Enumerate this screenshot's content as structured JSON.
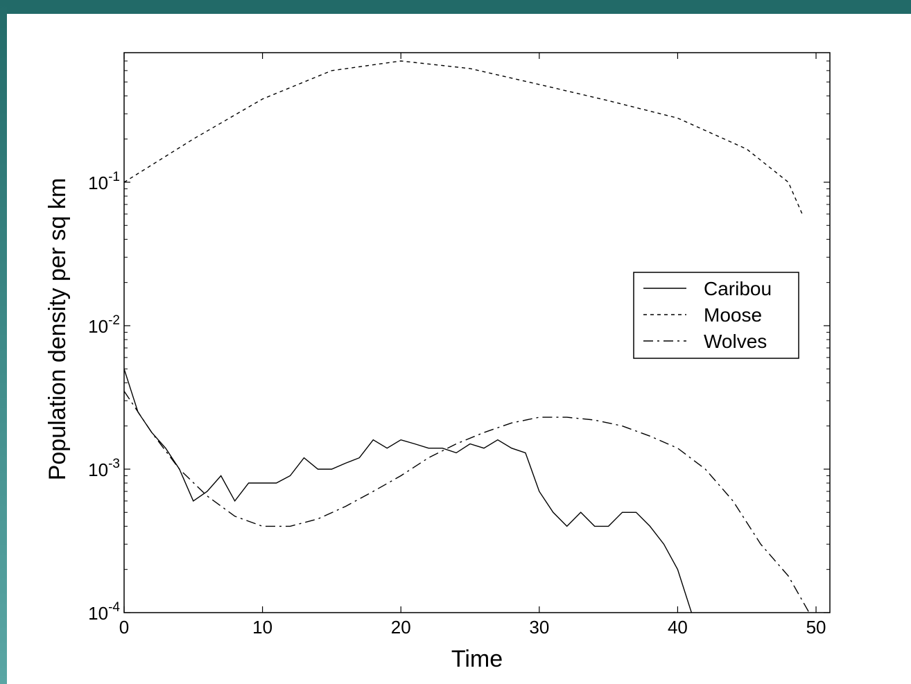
{
  "chart_data": {
    "type": "line",
    "title": "",
    "xlabel": "Time",
    "ylabel": "Population density per sq km",
    "xlim": [
      0,
      51
    ],
    "ylim": [
      0.0001,
      0.8
    ],
    "yscale": "log",
    "grid": false,
    "legend_position": "center-right",
    "x_ticks": [
      0,
      10,
      20,
      30,
      40,
      50
    ],
    "x_tick_labels": [
      "0",
      "10",
      "20",
      "30",
      "40",
      "50"
    ],
    "y_ticks": [
      0.1,
      0.01,
      0.001,
      0.0001
    ],
    "y_tick_labels": [
      {
        "base": "10",
        "exp": "-1"
      },
      {
        "base": "10",
        "exp": "-2"
      },
      {
        "base": "10",
        "exp": "-3"
      },
      {
        "base": "10",
        "exp": "-4"
      }
    ],
    "series": [
      {
        "name": "Caribou",
        "style": "solid",
        "x": [
          0,
          1,
          2,
          3,
          4,
          5,
          6,
          7,
          8,
          9,
          10,
          11,
          12,
          13,
          14,
          15,
          16,
          17,
          18,
          19,
          20,
          21,
          22,
          23,
          24,
          25,
          26,
          27,
          28,
          29,
          30,
          31,
          32,
          33,
          34,
          35,
          36,
          37,
          38,
          39,
          40,
          41
        ],
        "y": [
          0.005,
          0.0025,
          0.0018,
          0.0014,
          0.001,
          0.0006,
          0.0007,
          0.0009,
          0.0006,
          0.0008,
          0.0008,
          0.0008,
          0.0009,
          0.0012,
          0.001,
          0.001,
          0.0011,
          0.0012,
          0.0016,
          0.0014,
          0.0016,
          0.0015,
          0.0014,
          0.0014,
          0.0013,
          0.0015,
          0.0014,
          0.0016,
          0.0014,
          0.0013,
          0.0007,
          0.0005,
          0.0004,
          0.0005,
          0.0004,
          0.0004,
          0.0005,
          0.0005,
          0.0004,
          0.0003,
          0.0002,
          0.0001
        ]
      },
      {
        "name": "Moose",
        "style": "dotted",
        "x": [
          0,
          5,
          10,
          15,
          20,
          25,
          30,
          35,
          40,
          45,
          48,
          49
        ],
        "y": [
          0.1,
          0.2,
          0.38,
          0.6,
          0.7,
          0.62,
          0.48,
          0.37,
          0.28,
          0.17,
          0.1,
          0.06
        ]
      },
      {
        "name": "Wolves",
        "style": "dashdot",
        "x": [
          0,
          2,
          4,
          6,
          8,
          10,
          12,
          14,
          16,
          18,
          20,
          22,
          24,
          26,
          28,
          30,
          32,
          34,
          36,
          38,
          40,
          42,
          44,
          46,
          48,
          49.5
        ],
        "y": [
          0.0035,
          0.0018,
          0.001,
          0.00065,
          0.00047,
          0.0004,
          0.0004,
          0.00045,
          0.00055,
          0.0007,
          0.0009,
          0.0012,
          0.0015,
          0.0018,
          0.0021,
          0.0023,
          0.0023,
          0.0022,
          0.002,
          0.0017,
          0.0014,
          0.001,
          0.0006,
          0.0003,
          0.00018,
          0.0001
        ]
      }
    ]
  }
}
